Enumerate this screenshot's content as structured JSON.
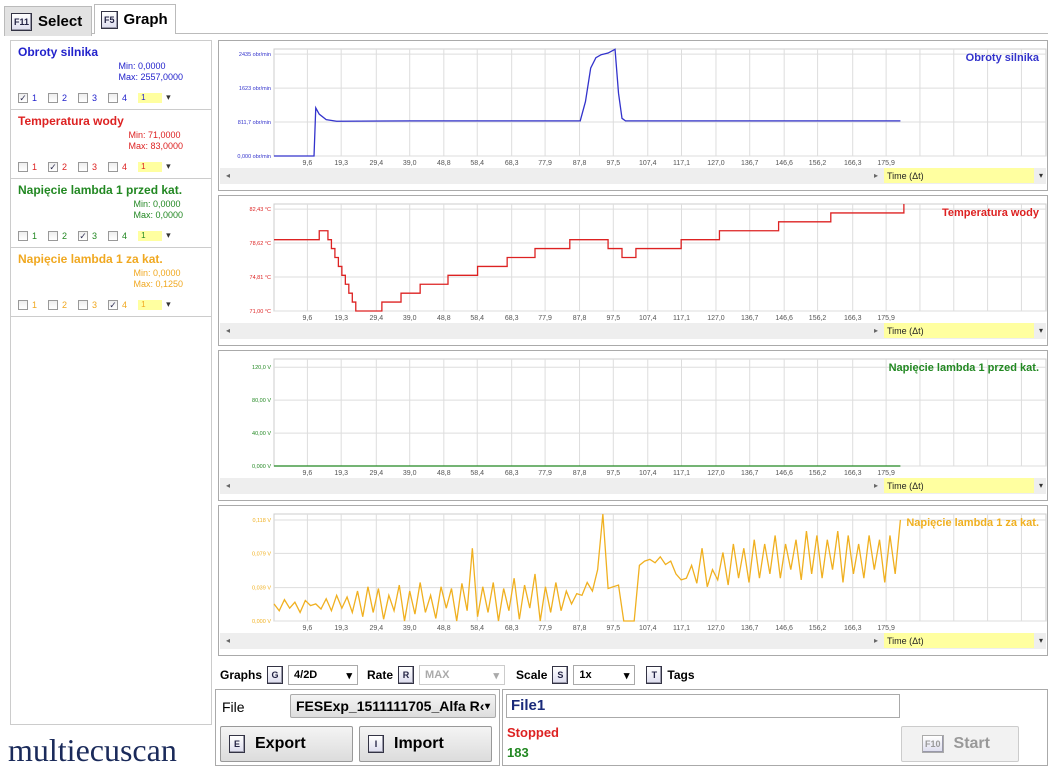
{
  "tabs": [
    {
      "key": "F11",
      "label": "Select"
    },
    {
      "key": "F5",
      "label": "Graph"
    }
  ],
  "signals": [
    {
      "name": "Obroty silnika",
      "min": "Min: 0,0000",
      "max": "Max: 2557,0000",
      "color": "#2222cc",
      "checked": 1,
      "scale": "1"
    },
    {
      "name": "Temperatura wody",
      "min": "Min: 71,0000",
      "max": "Max: 83,0000",
      "color": "#dd2222",
      "checked": 2,
      "scale": "1"
    },
    {
      "name": "Napięcie lambda 1 przed kat.",
      "min": "Min: 0,0000",
      "max": "Max: 0,0000",
      "color": "#228822",
      "checked": 3,
      "scale": "1"
    },
    {
      "name": "Napięcie lambda 1 za kat.",
      "min": "Min: 0,0000",
      "max": "Max: 0,1250",
      "color": "#f0a820",
      "checked": 4,
      "scale": "1"
    }
  ],
  "checkbox_labels": [
    "1",
    "2",
    "3",
    "4"
  ],
  "chart_data": [
    {
      "type": "line",
      "title": "Obroty silnika",
      "color": "#3333cc",
      "ylim": [
        0,
        2557
      ],
      "yticks": [
        0,
        811.7,
        1623,
        2435
      ],
      "yticklabels": [
        "0,000 obr/min",
        "811,7 obr/min",
        "1623 obr/min",
        "2435 obr/min"
      ],
      "x": [
        0,
        11.5,
        12,
        13,
        15,
        18,
        40,
        88,
        89.5,
        91,
        92.5,
        94,
        96,
        98,
        99,
        100,
        101,
        180
      ],
      "y": [
        0,
        0,
        1150,
        1000,
        870,
        830,
        840,
        840,
        1300,
        2100,
        2350,
        2420,
        2460,
        2550,
        1500,
        900,
        840,
        840
      ]
    },
    {
      "type": "line",
      "step": true,
      "title": "Temperatura wody",
      "color": "#dd2222",
      "ylim": [
        71,
        83
      ],
      "yticks": [
        71,
        74.81,
        78.62,
        82.43
      ],
      "yticklabels": [
        "71,00 °C",
        "74,81 °C",
        "78,62 °C",
        "82,43 °C"
      ],
      "x": [
        0,
        13,
        15.5,
        16.5,
        17.5,
        18.5,
        19.5,
        20.5,
        21.5,
        22.5,
        23.5,
        24.5,
        31,
        36.5,
        42,
        50,
        58.5,
        67,
        75,
        85,
        96,
        100,
        104,
        117,
        128,
        145,
        160,
        181
      ],
      "y": [
        79,
        80,
        79,
        78,
        77,
        76,
        75,
        74,
        73,
        72,
        71,
        71,
        72,
        73,
        74,
        75,
        76,
        77,
        78,
        79,
        78,
        77,
        78,
        79,
        80,
        81,
        82,
        83
      ]
    },
    {
      "type": "line",
      "title": "Napięcie lambda 1 przed kat.",
      "color": "#228822",
      "ylim": [
        0,
        130
      ],
      "yticks": [
        0,
        40,
        80,
        120
      ],
      "yticklabels": [
        "0,000 V",
        "40,00 V",
        "80,00 V",
        "120,0 V"
      ],
      "x": [
        0,
        180
      ],
      "y": [
        0,
        0
      ]
    },
    {
      "type": "line",
      "title": "Napięcie lambda 1 za kat.",
      "color": "#f0b020",
      "ylim": [
        0,
        0.125
      ],
      "yticks": [
        0,
        0.039,
        0.079,
        0.118
      ],
      "yticklabels": [
        "0,000 V",
        "0,039 V",
        "0,079 V",
        "0,118 V"
      ],
      "x_start": 0,
      "x_step": 1.5,
      "y": [
        0.02,
        0.012,
        0.025,
        0.015,
        0.022,
        0.01,
        0.024,
        0.018,
        0.02,
        0.014,
        0.026,
        0.012,
        0.03,
        0.015,
        0.028,
        0.01,
        0.035,
        0.005,
        0.04,
        0.01,
        0.038,
        0.002,
        0.03,
        0.012,
        0.042,
        0.0,
        0.035,
        0.008,
        0.045,
        0.01,
        0.03,
        0.003,
        0.04,
        0.015,
        0.038,
        0.0,
        0.044,
        0.012,
        0.085,
        0.005,
        0.04,
        0.01,
        0.045,
        0.0,
        0.038,
        0.012,
        0.05,
        0.002,
        0.042,
        0.015,
        0.055,
        0.0,
        0.04,
        0.01,
        0.045,
        0.012,
        0.035,
        0.02,
        0.032,
        0.03,
        0.045,
        0.035,
        0.06,
        0.125,
        0.038,
        0.04,
        0.042,
        0,
        0,
        0,
        0.065,
        0.07,
        0.072,
        0.068,
        0.075,
        0.066,
        0.07,
        0.055,
        0.048,
        0.05,
        0.065,
        0.044,
        0.085,
        0.04,
        0.06,
        0.048,
        0.08,
        0.042,
        0.09,
        0.05,
        0.085,
        0.045,
        0.095,
        0.05,
        0.09,
        0.055,
        0.1,
        0.05,
        0.09,
        0.06,
        0.095,
        0.048,
        0.105,
        0.055,
        0.1,
        0.05,
        0.095,
        0.06,
        0.105,
        0.045,
        0.1,
        0.055,
        0.09,
        0.05,
        0.1,
        0.06,
        0.095,
        0.045,
        0.1,
        0.055,
        0.118
      ]
    }
  ],
  "xticks": [
    9.6,
    19.3,
    29.4,
    39.0,
    48.8,
    58.4,
    68.3,
    77.9,
    87.8,
    97.5,
    107.4,
    117.1,
    127.0,
    136.7,
    146.6,
    156.2,
    166.3,
    175.9
  ],
  "xticklabels": [
    "9,6",
    "19,3",
    "29,4",
    "39,0",
    "48,8",
    "58,4",
    "68,3",
    "77,9",
    "87,8",
    "97,5",
    "107,4",
    "117,1",
    "127,0",
    "136,7",
    "146,6",
    "156,2",
    "166,3",
    "175,9"
  ],
  "time_select": "Time (Δt)",
  "toolbar": {
    "graphs_label": "Graphs",
    "graphs_key": "G",
    "graphs_value": "4/2D",
    "rate_label": "Rate",
    "rate_key": "R",
    "rate_value": "MAX",
    "scale_label": "Scale",
    "scale_key": "S",
    "scale_value": "1x",
    "tags_key": "T",
    "tags_label": "Tags"
  },
  "file": {
    "label": "File",
    "value": "FESExp_1511111705_Alfa R‹",
    "export_key": "E",
    "export_label": "Export",
    "import_key": "I",
    "import_label": "Import"
  },
  "status": {
    "name": "File1",
    "state": "Stopped",
    "count": "183",
    "start_key": "F10",
    "start_label": "Start"
  },
  "logo": "multiecuscan"
}
